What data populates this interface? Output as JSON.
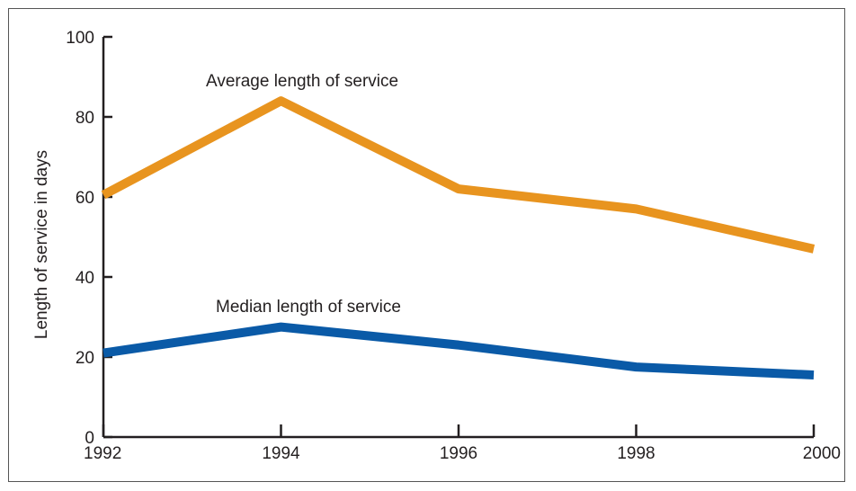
{
  "chart_data": {
    "type": "line",
    "title": "",
    "xlabel": "",
    "ylabel": "Length of service in days",
    "categories": [
      "1992",
      "1994",
      "1996",
      "1998",
      "2000"
    ],
    "x": [
      1992,
      1994,
      1996,
      1998,
      2000
    ],
    "ylim": [
      0,
      100
    ],
    "xlim": [
      1992,
      2000
    ],
    "yticks": [
      "0",
      "20",
      "40",
      "60",
      "80",
      "100"
    ],
    "grid": false,
    "legend": "none",
    "series": [
      {
        "name": "Average length of service",
        "values": [
          60.5,
          84,
          62,
          57,
          47
        ],
        "color": "#e8941f"
      },
      {
        "name": "Median length of service",
        "values": [
          21,
          27.5,
          23,
          17.5,
          15.5
        ],
        "color": "#0a5aa7"
      }
    ]
  }
}
